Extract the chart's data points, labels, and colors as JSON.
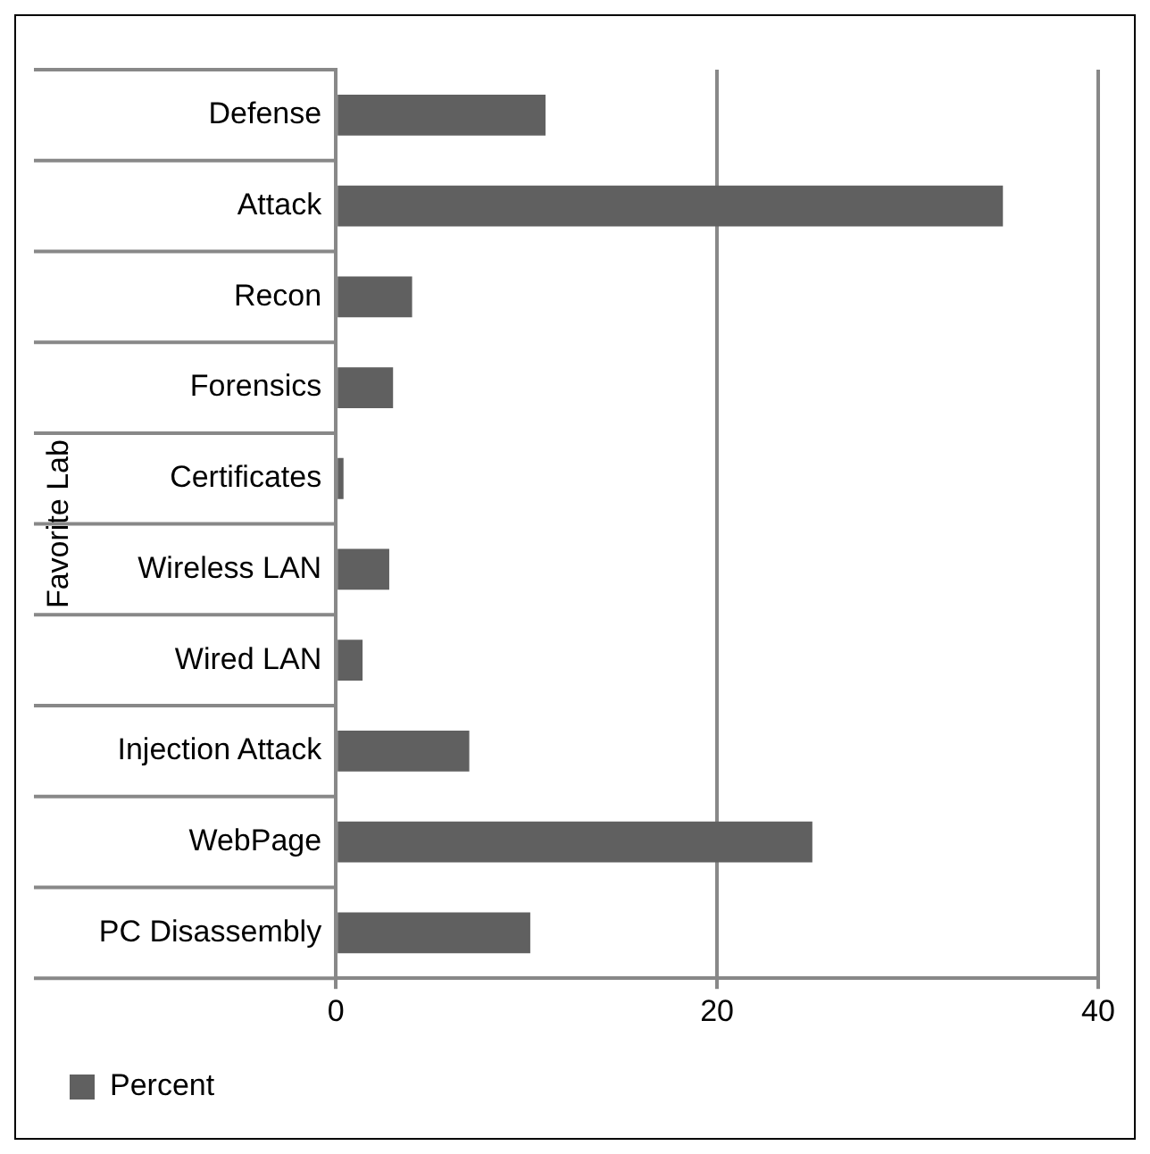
{
  "chart_data": {
    "type": "bar",
    "orientation": "horizontal",
    "ylabel": "Favorite Lab",
    "categories": [
      "Defense",
      "Attack",
      "Recon",
      "Forensics",
      "Certificates",
      "Wireless LAN",
      "Wired LAN",
      "Injection Attack",
      "WebPage",
      "PC Disassembly"
    ],
    "series": [
      {
        "name": "Percent",
        "color": "#606060",
        "values": [
          11,
          35,
          4,
          3,
          0.4,
          2.8,
          1.4,
          7,
          25,
          10.2
        ]
      }
    ],
    "xlim": [
      0,
      40
    ],
    "xticks": [
      0,
      20,
      40
    ],
    "grid": "x",
    "legend": "bottom left"
  }
}
